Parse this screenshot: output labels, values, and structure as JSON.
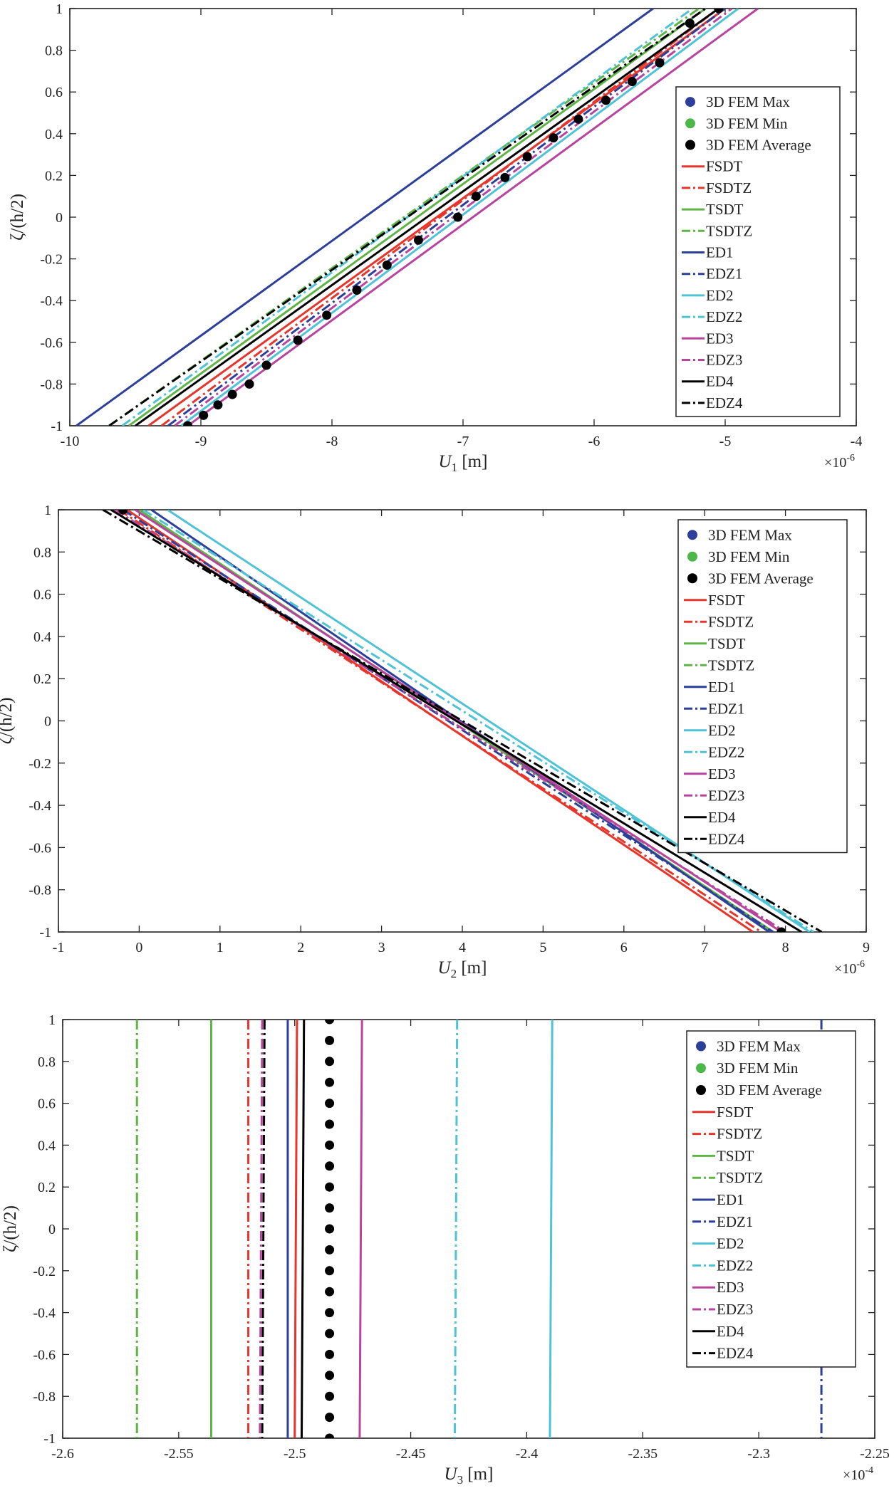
{
  "legend_entries": [
    {
      "label": "3D FEM Max",
      "color": "#2c3f9a",
      "style": "marker"
    },
    {
      "label": "3D FEM Min",
      "color": "#4db84a",
      "style": "marker"
    },
    {
      "label": "3D FEM Average",
      "color": "#000000",
      "style": "marker"
    },
    {
      "label": "FSDT",
      "color": "#e8352b",
      "style": "solid"
    },
    {
      "label": "FSDTZ",
      "color": "#e8352b",
      "style": "dashdot"
    },
    {
      "label": "TSDT",
      "color": "#5fb446",
      "style": "solid"
    },
    {
      "label": "TSDTZ",
      "color": "#5fb446",
      "style": "dashdot"
    },
    {
      "label": "ED1",
      "color": "#2c3f9a",
      "style": "solid"
    },
    {
      "label": "EDZ1",
      "color": "#2c3f9a",
      "style": "dashdot"
    },
    {
      "label": "ED2",
      "color": "#4fc3d6",
      "style": "solid"
    },
    {
      "label": "EDZ2",
      "color": "#4fc3d6",
      "style": "dashdot"
    },
    {
      "label": "ED3",
      "color": "#b8449e",
      "style": "solid"
    },
    {
      "label": "EDZ3",
      "color": "#b8449e",
      "style": "dashdot"
    },
    {
      "label": "ED4",
      "color": "#000000",
      "style": "solid"
    },
    {
      "label": "EDZ4",
      "color": "#000000",
      "style": "dashdot"
    }
  ],
  "chart_data": [
    {
      "type": "line",
      "xlabel": "U1 [m]",
      "ylabel": "ζ/(h/2)",
      "exponent_label": "×10-6",
      "xlim": [
        -10,
        -4
      ],
      "ylim": [
        -1,
        1
      ],
      "xticks": [
        -10,
        -9,
        -8,
        -7,
        -6,
        -5,
        -4
      ],
      "yticks": [
        -1,
        -0.8,
        -0.6,
        -0.4,
        -0.2,
        0,
        0.2,
        0.4,
        0.6,
        0.8,
        1
      ],
      "legend_position": "upper-right",
      "series": [
        {
          "name": "FSDT",
          "x": [
            -9.4,
            -5.0
          ],
          "y": [
            -1,
            1
          ]
        },
        {
          "name": "FSDTZ",
          "x": [
            -9.3,
            -5.05
          ],
          "y": [
            -1,
            1
          ]
        },
        {
          "name": "TSDT",
          "x": [
            -9.55,
            -5.15
          ],
          "y": [
            -1,
            1
          ]
        },
        {
          "name": "TSDTZ",
          "x": [
            -9.7,
            -5.2
          ],
          "y": [
            -1,
            1
          ]
        },
        {
          "name": "ED1",
          "x": [
            -9.95,
            -5.55
          ],
          "y": [
            -1,
            1
          ]
        },
        {
          "name": "EDZ1",
          "x": [
            -9.25,
            -5.0
          ],
          "y": [
            -1,
            1
          ]
        },
        {
          "name": "ED2",
          "x": [
            -9.15,
            -4.9
          ],
          "y": [
            -1,
            1
          ]
        },
        {
          "name": "EDZ2",
          "x": [
            -9.6,
            -5.25
          ],
          "y": [
            -1,
            1
          ]
        },
        {
          "name": "ED3",
          "x": [
            -9.1,
            -4.75
          ],
          "y": [
            -1,
            1
          ]
        },
        {
          "name": "EDZ3",
          "x": [
            -9.2,
            -4.95
          ],
          "y": [
            -1,
            1
          ]
        },
        {
          "name": "ED4",
          "x": [
            -9.5,
            -5.05
          ],
          "y": [
            -1,
            1
          ]
        },
        {
          "name": "EDZ4",
          "x": [
            -9.7,
            -5.15
          ],
          "y": [
            -1,
            1
          ]
        },
        {
          "name": "3D FEM Average",
          "x": [
            -9.1,
            -8.98,
            -8.87,
            -8.76,
            -8.63,
            -8.5,
            -8.26,
            -8.04,
            -7.81,
            -7.58,
            -7.34,
            -7.04,
            -6.9,
            -6.68,
            -6.51,
            -6.31,
            -6.12,
            -5.91,
            -5.71,
            -5.5,
            -5.27,
            -5.05
          ],
          "y": [
            -1,
            -0.95,
            -0.9,
            -0.85,
            -0.8,
            -0.71,
            -0.59,
            -0.47,
            -0.35,
            -0.23,
            -0.11,
            0.0,
            0.1,
            0.19,
            0.29,
            0.38,
            0.47,
            0.56,
            0.65,
            0.74,
            0.93,
            1.0
          ]
        }
      ]
    },
    {
      "type": "line",
      "xlabel": "U2 [m]",
      "ylabel": "ζ/(h/2)",
      "exponent_label": "×10-6",
      "xlim": [
        -1,
        9
      ],
      "ylim": [
        -1,
        1
      ],
      "xticks": [
        -1,
        0,
        1,
        2,
        3,
        4,
        5,
        6,
        7,
        8,
        9
      ],
      "yticks": [
        -1,
        -0.8,
        -0.6,
        -0.4,
        -0.2,
        0,
        0.2,
        0.4,
        0.6,
        0.8,
        1
      ],
      "legend_position": "upper-right",
      "series": [
        {
          "name": "FSDT",
          "x": [
            -0.15,
            7.6
          ],
          "y": [
            1,
            -1
          ]
        },
        {
          "name": "FSDTZ",
          "x": [
            -0.25,
            7.7
          ],
          "y": [
            1,
            -1
          ]
        },
        {
          "name": "TSDT",
          "x": [
            0.0,
            7.85
          ],
          "y": [
            1,
            -1
          ]
        },
        {
          "name": "TSDTZ",
          "x": [
            -0.3,
            8.0
          ],
          "y": [
            1,
            -1
          ]
        },
        {
          "name": "ED1",
          "x": [
            0.15,
            7.8
          ],
          "y": [
            1,
            -1
          ]
        },
        {
          "name": "EDZ1",
          "x": [
            -0.2,
            7.85
          ],
          "y": [
            1,
            -1
          ]
        },
        {
          "name": "ED2",
          "x": [
            0.35,
            8.3
          ],
          "y": [
            1,
            -1
          ]
        },
        {
          "name": "EDZ2",
          "x": [
            0.05,
            8.35
          ],
          "y": [
            1,
            -1
          ]
        },
        {
          "name": "ED3",
          "x": [
            -0.05,
            7.95
          ],
          "y": [
            1,
            -1
          ]
        },
        {
          "name": "EDZ3",
          "x": [
            -0.3,
            8.0
          ],
          "y": [
            1,
            -1
          ]
        },
        {
          "name": "ED4",
          "x": [
            -0.35,
            8.2
          ],
          "y": [
            1,
            -1
          ]
        },
        {
          "name": "EDZ4",
          "x": [
            -0.45,
            8.45
          ],
          "y": [
            1,
            -1
          ]
        },
        {
          "name": "3D FEM Average",
          "x": [
            -0.2,
            7.95
          ],
          "y": [
            1,
            -1
          ]
        }
      ]
    },
    {
      "type": "line",
      "xlabel": "U3 [m]",
      "ylabel": "ζ/(h/2)",
      "exponent_label": "×10-4",
      "xlim": [
        -2.6,
        -2.25
      ],
      "ylim": [
        -1,
        1
      ],
      "xticks": [
        -2.6,
        -2.55,
        -2.5,
        -2.45,
        -2.4,
        -2.35,
        -2.3,
        -2.25
      ],
      "yticks": [
        -1,
        -0.8,
        -0.6,
        -0.4,
        -0.2,
        0,
        0.2,
        0.4,
        0.6,
        0.8,
        1
      ],
      "legend_position": "upper-right",
      "series": [
        {
          "name": "FSDT",
          "x": [
            -2.499,
            -2.5
          ],
          "y": [
            1,
            -1
          ]
        },
        {
          "name": "FSDTZ",
          "x": [
            -2.52,
            -2.52
          ],
          "y": [
            1,
            -1
          ]
        },
        {
          "name": "TSDT",
          "x": [
            -2.536,
            -2.536
          ],
          "y": [
            1,
            -1
          ]
        },
        {
          "name": "TSDTZ",
          "x": [
            -2.568,
            -2.568
          ],
          "y": [
            1,
            -1
          ]
        },
        {
          "name": "ED1",
          "x": [
            -2.503,
            -2.503
          ],
          "y": [
            1,
            -1
          ]
        },
        {
          "name": "EDZ1",
          "x": [
            -2.273,
            -2.273
          ],
          "y": [
            1,
            -1
          ]
        },
        {
          "name": "ED2",
          "x": [
            -2.389,
            -2.39
          ],
          "y": [
            1,
            -1
          ]
        },
        {
          "name": "EDZ2",
          "x": [
            -2.43,
            -2.431
          ],
          "y": [
            1,
            -1
          ]
        },
        {
          "name": "ED3",
          "x": [
            -2.471,
            -2.472
          ],
          "y": [
            1,
            -1
          ]
        },
        {
          "name": "EDZ3",
          "x": [
            -2.514,
            -2.515
          ],
          "y": [
            1,
            -1
          ]
        },
        {
          "name": "ED4",
          "x": [
            -2.496,
            -2.497
          ],
          "y": [
            1,
            -1
          ]
        },
        {
          "name": "EDZ4",
          "x": [
            -2.513,
            -2.514
          ],
          "y": [
            1,
            -1
          ]
        },
        {
          "name": "3D FEM Average",
          "x": [
            -2.485,
            -2.485,
            -2.485,
            -2.485,
            -2.485,
            -2.485,
            -2.485,
            -2.485,
            -2.485,
            -2.485,
            -2.485,
            -2.485,
            -2.485,
            -2.485,
            -2.485,
            -2.485,
            -2.485,
            -2.485,
            -2.485,
            -2.485,
            -2.485
          ],
          "y": [
            1,
            0.9,
            0.8,
            0.7,
            0.6,
            0.5,
            0.4,
            0.3,
            0.2,
            0.1,
            0.0,
            -0.1,
            -0.2,
            -0.3,
            -0.4,
            -0.5,
            -0.6,
            -0.7,
            -0.8,
            -0.9,
            -1
          ]
        }
      ]
    }
  ]
}
